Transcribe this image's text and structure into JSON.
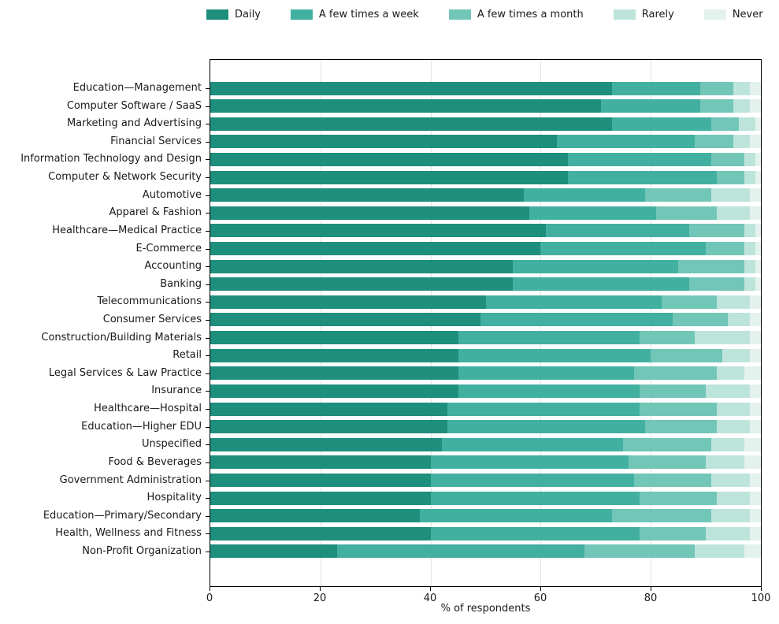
{
  "chart_data": {
    "type": "bar",
    "orientation": "horizontal",
    "stacked": true,
    "title": "",
    "xlabel": "% of respondents",
    "ylabel": "",
    "xlim": [
      0,
      100
    ],
    "x_ticks": [
      0,
      20,
      40,
      60,
      80,
      100
    ],
    "grid_x": [
      20,
      40,
      60,
      80
    ],
    "grid": "vertical-light-gray",
    "legend_position": "top-outside-horizontal",
    "categories": [
      "Education—Management",
      "Computer Software / SaaS",
      "Marketing and Advertising",
      "Financial Services",
      "Information Technology and Design",
      "Computer & Network Security",
      "Automotive",
      "Apparel & Fashion",
      "Healthcare—Medical Practice",
      "E-Commerce",
      "Accounting",
      "Banking",
      "Telecommunications",
      "Consumer Services",
      "Construction/Building Materials",
      "Retail",
      "Legal Services & Law Practice",
      "Insurance",
      "Healthcare—Hospital",
      "Education—Higher EDU",
      "Unspecified",
      "Food & Beverages",
      "Government Administration",
      "Hospitality",
      "Education—Primary/Secondary",
      "Health, Wellness and Fitness",
      "Non-Profit Organization"
    ],
    "series": [
      {
        "name": "Daily",
        "color": "#1e8e7d",
        "values": [
          73,
          71,
          73,
          63,
          65,
          65,
          57,
          58,
          61,
          60,
          55,
          55,
          50,
          49,
          45,
          45,
          45,
          45,
          43,
          43,
          42,
          40,
          40,
          40,
          38,
          40,
          23
        ]
      },
      {
        "name": "A few times a week",
        "color": "#42b0a1",
        "values": [
          16,
          18,
          18,
          25,
          26,
          27,
          22,
          23,
          26,
          30,
          30,
          32,
          32,
          35,
          33,
          35,
          32,
          33,
          35,
          36,
          33,
          36,
          37,
          38,
          35,
          38,
          45
        ]
      },
      {
        "name": "A few times a month",
        "color": "#72c6b7",
        "values": [
          6,
          6,
          5,
          7,
          6,
          5,
          12,
          11,
          10,
          7,
          12,
          10,
          10,
          10,
          10,
          13,
          15,
          12,
          14,
          13,
          16,
          14,
          14,
          14,
          18,
          12,
          20
        ]
      },
      {
        "name": "Rarely",
        "color": "#bde4db",
        "values": [
          3,
          3,
          3,
          3,
          2,
          2,
          7,
          6,
          2,
          2,
          2,
          2,
          6,
          4,
          10,
          5,
          5,
          8,
          6,
          6,
          6,
          7,
          7,
          6,
          7,
          8,
          9
        ]
      },
      {
        "name": "Never",
        "color": "#e4f2ee",
        "values": [
          2,
          2,
          1,
          2,
          1,
          1,
          2,
          2,
          1,
          1,
          1,
          1,
          2,
          2,
          2,
          2,
          3,
          2,
          2,
          2,
          3,
          3,
          2,
          2,
          2,
          2,
          3
        ]
      }
    ]
  }
}
